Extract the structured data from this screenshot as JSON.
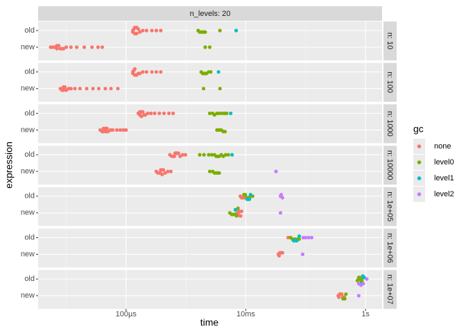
{
  "chart_data": {
    "type": "beeswarm",
    "strip_top": "n_levels: 20",
    "x_label": "time",
    "y_label": "expression",
    "log_x": true,
    "xlim": [
      3.4e-06,
      1.89
    ],
    "xticks": [
      {
        "value": 0.0001,
        "label": "100µs"
      },
      {
        "value": 0.01,
        "label": "10ms"
      },
      {
        "value": 1,
        "label": "1s"
      }
    ],
    "categories": [
      "old",
      "new"
    ],
    "legend_title": "gc",
    "series": [
      {
        "name": "none",
        "color": "#F8766D"
      },
      {
        "name": "level0",
        "color": "#7CAE00"
      },
      {
        "name": "level1",
        "color": "#00BFC4"
      },
      {
        "name": "level2",
        "color": "#C77CFF"
      }
    ],
    "facets": [
      {
        "label": "n: 10",
        "groups": [
          {
            "expression": 0,
            "gc": 0,
            "values": [
              0.00013,
              0.00013,
              0.000135,
              0.00014,
              0.00014,
              0.000145,
              0.00015,
              0.00015,
              0.00016,
              0.00017,
              0.00019,
              0.00022,
              0.00027,
              0.00032,
              0.00038
            ]
          },
          {
            "expression": 0,
            "gc": 1,
            "values": [
              0.0016,
              0.0017,
              0.0018,
              0.0019,
              0.002,
              0.0021,
              0.0037
            ]
          },
          {
            "expression": 0,
            "gc": 2,
            "values": [
              0.0069
            ]
          },
          {
            "expression": 1,
            "gc": 0,
            "values": [
              5.5e-06,
              6e-06,
              6.5e-06,
              7e-06,
              7e-06,
              7.5e-06,
              8e-06,
              8.5e-06,
              9e-06,
              1e-05,
              1.2e-05,
              1.5e-05,
              2e-05,
              2.7e-05,
              3.4e-05,
              4e-05
            ]
          },
          {
            "expression": 1,
            "gc": 1,
            "values": [
              0.0021,
              0.0025
            ]
          }
        ]
      },
      {
        "label": "n: 100",
        "groups": [
          {
            "expression": 0,
            "gc": 0,
            "values": [
              0.00013,
              0.00013,
              0.000135,
              0.00014,
              0.00014,
              0.000145,
              0.00015,
              0.00016,
              0.00017,
              0.00019,
              0.00022,
              0.00027,
              0.00032,
              0.00038
            ]
          },
          {
            "expression": 0,
            "gc": 1,
            "values": [
              0.0018,
              0.0019,
              0.002,
              0.0021,
              0.0022,
              0.0024,
              0.0026
            ]
          },
          {
            "expression": 0,
            "gc": 2,
            "values": [
              0.0035
            ]
          },
          {
            "expression": 1,
            "gc": 0,
            "values": [
              8e-06,
              8.5e-06,
              9e-06,
              9e-06,
              9.5e-06,
              1e-05,
              1.1e-05,
              1.2e-05,
              1.4e-05,
              1.7e-05,
              2.2e-05,
              2.8e-05,
              3.5e-05,
              4.5e-05,
              5.6e-05,
              7.3e-05
            ]
          },
          {
            "expression": 1,
            "gc": 1,
            "values": [
              0.00197,
              0.0037
            ]
          }
        ]
      },
      {
        "label": "n: 1000",
        "groups": [
          {
            "expression": 0,
            "gc": 0,
            "values": [
              0.00016,
              0.00017,
              0.00017,
              0.00018,
              0.00018,
              0.00019,
              0.0002,
              0.00021,
              0.00023,
              0.00026,
              0.0003,
              0.00036,
              0.00043,
              0.00052,
              0.00061
            ]
          },
          {
            "expression": 0,
            "gc": 1,
            "values": [
              0.0025,
              0.0028,
              0.003,
              0.0033,
              0.0036,
              0.004,
              0.0044,
              0.0048
            ]
          },
          {
            "expression": 0,
            "gc": 2,
            "values": [
              0.0056
            ]
          },
          {
            "expression": 1,
            "gc": 0,
            "values": [
              3.7e-05,
              4e-05,
              4.2e-05,
              4.2e-05,
              4.4e-05,
              4.6e-05,
              4.6e-05,
              4.8e-05,
              5e-05,
              5.5e-05,
              6e-05,
              7e-05,
              8e-05,
              9e-05,
              0.0001
            ]
          },
          {
            "expression": 1,
            "gc": 1,
            "values": [
              0.0033,
              0.0036,
              0.0039,
              0.0042,
              0.0045
            ]
          }
        ]
      },
      {
        "label": "n: 10000",
        "groups": [
          {
            "expression": 0,
            "gc": 0,
            "values": [
              0.00054,
              0.00058,
              0.00062,
              0.00064,
              0.00066,
              0.00068,
              0.0007,
              0.00072,
              0.00075,
              0.0008,
              0.00088,
              0.00098
            ]
          },
          {
            "expression": 0,
            "gc": 1,
            "values": [
              0.0017,
              0.002,
              0.0024,
              0.0027,
              0.003,
              0.0032,
              0.0034,
              0.0036,
              0.0039,
              0.0042,
              0.0046,
              0.0051
            ]
          },
          {
            "expression": 0,
            "gc": 2,
            "values": [
              0.0059
            ]
          },
          {
            "expression": 1,
            "gc": 0,
            "values": [
              0.00032,
              0.00034,
              0.00036,
              0.00037,
              0.00038,
              0.00039,
              0.0004,
              0.00042,
              0.00045,
              0.0005,
              0.00056
            ]
          },
          {
            "expression": 1,
            "gc": 1,
            "values": [
              0.0025,
              0.0028,
              0.003,
              0.0032,
              0.0034,
              0.0036
            ]
          },
          {
            "expression": 1,
            "gc": 3,
            "values": [
              0.032
            ]
          }
        ]
      },
      {
        "label": "n: 1e+05",
        "groups": [
          {
            "expression": 0,
            "gc": 0,
            "values": [
              0.0081,
              0.0085,
              0.0089,
              0.0093
            ]
          },
          {
            "expression": 0,
            "gc": 1,
            "values": [
              0.0093,
              0.0098,
              0.0105,
              0.011,
              0.012,
              0.013
            ]
          },
          {
            "expression": 0,
            "gc": 2,
            "values": [
              0.0105,
              0.011,
              0.0115,
              0.012
            ]
          },
          {
            "expression": 0,
            "gc": 3,
            "values": [
              0.038,
              0.041,
              0.039
            ]
          },
          {
            "expression": 1,
            "gc": 0,
            "values": [
              0.0072,
              0.0074,
              0.0076,
              0.0078,
              0.008,
              0.0082,
              0.0085
            ]
          },
          {
            "expression": 1,
            "gc": 1,
            "values": [
              0.0054,
              0.0058,
              0.0062,
              0.0066,
              0.007,
              0.0074
            ]
          },
          {
            "expression": 1,
            "gc": 2,
            "values": [
              0.0067
            ]
          },
          {
            "expression": 1,
            "gc": 3,
            "values": [
              0.038
            ]
          }
        ]
      },
      {
        "label": "n: 1e+06",
        "groups": [
          {
            "expression": 0,
            "gc": 0,
            "values": [
              0.051
            ]
          },
          {
            "expression": 0,
            "gc": 1,
            "values": [
              0.056,
              0.06,
              0.064,
              0.068,
              0.073,
              0.078
            ]
          },
          {
            "expression": 0,
            "gc": 2,
            "values": [
              0.063,
              0.067,
              0.071,
              0.078
            ]
          },
          {
            "expression": 0,
            "gc": 3,
            "values": [
              0.091,
              0.1,
              0.112,
              0.126
            ]
          },
          {
            "expression": 1,
            "gc": 0,
            "values": [
              0.035,
              0.036,
              0.037,
              0.038,
              0.039,
              0.041
            ]
          },
          {
            "expression": 1,
            "gc": 3,
            "values": [
              0.089
            ]
          }
        ]
      },
      {
        "label": "n: 1e+07",
        "groups": [
          {
            "expression": 0,
            "gc": 0,
            "values": [
              0.77
            ]
          },
          {
            "expression": 0,
            "gc": 1,
            "values": [
              0.73,
              0.77,
              0.8,
              0.84,
              0.87,
              0.9
            ]
          },
          {
            "expression": 0,
            "gc": 2,
            "values": [
              0.81,
              0.86,
              0.9,
              0.95
            ]
          },
          {
            "expression": 0,
            "gc": 3,
            "values": [
              0.77,
              0.84,
              0.92,
              1.05
            ]
          },
          {
            "expression": 1,
            "gc": 0,
            "values": [
              0.35,
              0.36,
              0.37,
              0.38,
              0.4,
              0.42,
              0.44
            ]
          },
          {
            "expression": 1,
            "gc": 1,
            "values": [
              0.42,
              0.45,
              0.47
            ]
          },
          {
            "expression": 1,
            "gc": 3,
            "values": [
              0.77
            ]
          }
        ]
      }
    ]
  }
}
